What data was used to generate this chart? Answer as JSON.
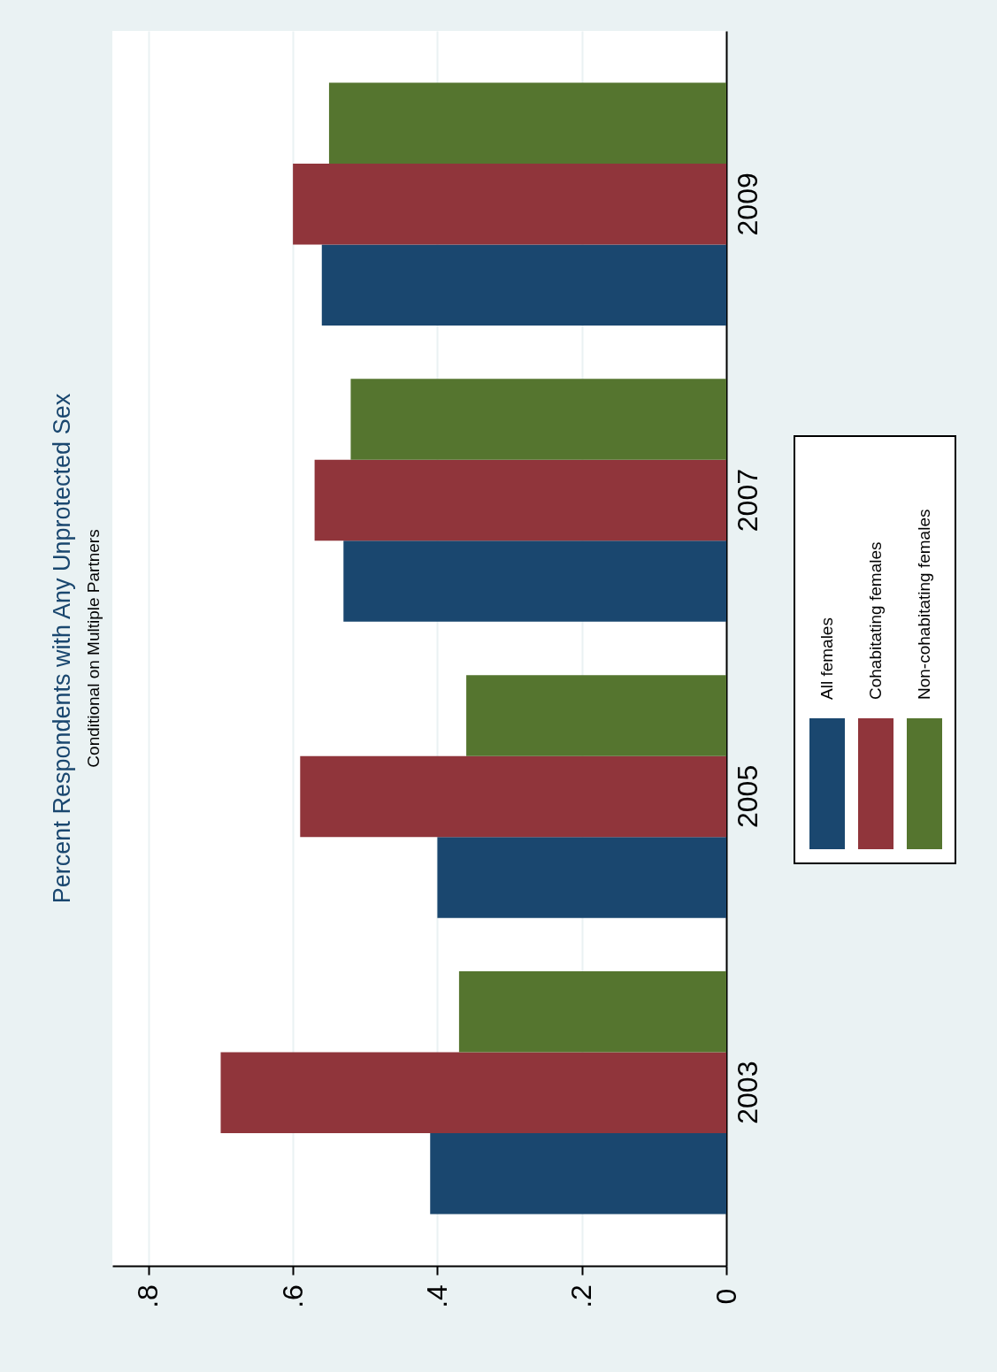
{
  "chart_data": {
    "type": "bar",
    "orientation": "horizontal",
    "title": "Percent Respondents with Any Unprotected Sex",
    "subtitle": "Conditional on Multiple Partners",
    "categories": [
      "2009",
      "2007",
      "2005",
      "2003"
    ],
    "series": [
      {
        "name": "All females",
        "color": "#1a476f",
        "values": [
          0.56,
          0.53,
          0.4,
          0.41
        ]
      },
      {
        "name": "Cohabitating females",
        "color": "#90353b",
        "values": [
          0.6,
          0.57,
          0.59,
          0.7
        ]
      },
      {
        "name": "Non-cohabitating females",
        "color": "#55752f",
        "values": [
          0.55,
          0.52,
          0.36,
          0.37
        ]
      }
    ],
    "xlim": [
      0.85,
      0
    ],
    "xticks": [
      {
        "value": 0.8,
        "label": ".8"
      },
      {
        "value": 0.6,
        "label": ".6"
      },
      {
        "value": 0.4,
        "label": ".4"
      },
      {
        "value": 0.2,
        "label": ".2"
      },
      0
    ],
    "grid": "x",
    "legend": "right"
  }
}
